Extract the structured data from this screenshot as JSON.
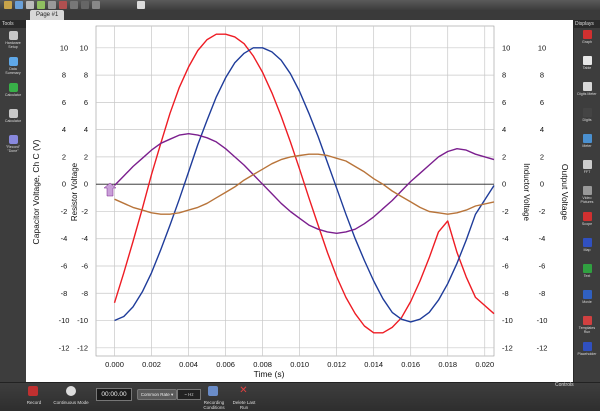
{
  "tabs": {
    "page_label": "Page #1"
  },
  "left_panel": {
    "header": "Tools",
    "items": [
      {
        "label": "Hardware Setup",
        "icon": "hardware-icon",
        "color": "#c8c8c8"
      },
      {
        "label": "Data Summary",
        "icon": "data-summary-icon",
        "color": "#5fa8e8"
      },
      {
        "label": "Calculator",
        "icon": "calculator-icon",
        "color": "#38b048"
      },
      {
        "label": "Calculator",
        "icon": "calculator-icon",
        "color": "#c8c8c8"
      },
      {
        "label": "\"Record\" \"Done\"",
        "icon": "record-icon",
        "color": "#8888dd"
      }
    ]
  },
  "right_panel": {
    "header": "Displays",
    "items": [
      {
        "label": "Graph",
        "icon": "graph-icon",
        "color": "#d03030"
      },
      {
        "label": "Table",
        "icon": "table-icon",
        "color": "#e8e8e8"
      },
      {
        "label": "Digits Meter",
        "icon": "digits-icon",
        "color": "#d8d8d8"
      },
      {
        "label": "Digits",
        "icon": "meter-icon",
        "color": "#444444"
      },
      {
        "label": "Meter",
        "icon": "gauge-icon",
        "color": "#4a90d0"
      },
      {
        "label": "FFT",
        "icon": "fft-icon",
        "color": "#cccccc"
      },
      {
        "label": "Video Pictures",
        "icon": "video-icon",
        "color": "#999999"
      },
      {
        "label": "Scope",
        "icon": "scope-icon",
        "color": "#d03030"
      },
      {
        "label": "Map",
        "icon": "map-icon",
        "color": "#3050c0"
      },
      {
        "label": "Text",
        "icon": "text-icon",
        "color": "#30a040"
      },
      {
        "label": "Movie",
        "icon": "movie-icon",
        "color": "#3060c0"
      },
      {
        "label": "Templates Run",
        "icon": "templates-icon",
        "color": "#d04040"
      },
      {
        "label": "Placeholder",
        "icon": "placeholder-icon",
        "color": "#3050c0"
      }
    ]
  },
  "bottom_bar": {
    "record_label": "Record",
    "mode_label": "Continuous Mode",
    "timer": "00:00.00",
    "rate_label": "Common Rate ▾",
    "rate_value": "~ Hz",
    "recording_label": "Recording Conditions",
    "delete_label": "Delete Last Run",
    "controls_header": "Controls"
  },
  "colors": {
    "red": "#ee1c24",
    "blue": "#1f3c9a",
    "purple": "#7b1f8e",
    "brown": "#b8743a"
  },
  "chart_data": {
    "type": "line",
    "xlabel": "Time (s)",
    "y_left_label": "Capacitor Voltage, Ch C (V)",
    "y_resistor_label": "Resistor Voltage",
    "y_inductor_label": "Inductor Voltage",
    "y_output_label": "Output Voltage",
    "xlim": [
      -0.001,
      0.0205
    ],
    "ylim": [
      -12.6,
      11.6
    ],
    "x_ticks": [
      "0.000",
      "0.002",
      "0.004",
      "0.006",
      "0.008",
      "0.010",
      "0.012",
      "0.014",
      "0.016",
      "0.018",
      "0.020"
    ],
    "x_tick_values": [
      0,
      0.002,
      0.004,
      0.006,
      0.008,
      0.01,
      0.012,
      0.014,
      0.016,
      0.018,
      0.02
    ],
    "y_ticks": [
      "10",
      "8",
      "6",
      "4",
      "2",
      "0",
      "-2",
      "-4",
      "-6",
      "-8",
      "-10",
      "-12"
    ],
    "y_tick_values": [
      10,
      8,
      6,
      4,
      2,
      0,
      -2,
      -4,
      -6,
      -8,
      -10,
      -12
    ],
    "grid": true,
    "x_sample": [
      0,
      0.0005,
      0.001,
      0.0015,
      0.002,
      0.0025,
      0.003,
      0.0035,
      0.004,
      0.0045,
      0.005,
      0.0055,
      0.006,
      0.0065,
      0.007,
      0.0075,
      0.008,
      0.0085,
      0.009,
      0.0095,
      0.01,
      0.0105,
      0.011,
      0.0115,
      0.012,
      0.0125,
      0.013,
      0.0135,
      0.014,
      0.0145,
      0.015,
      0.0155,
      0.016,
      0.0165,
      0.017,
      0.0175,
      0.018,
      0.0185,
      0.019,
      0.0195,
      0.0205
    ],
    "series": [
      {
        "color": "#ee1c24",
        "values": [
          -8.7,
          -6.5,
          -4.2,
          -1.8,
          0.7,
          3.0,
          5.2,
          7.1,
          8.6,
          9.8,
          10.6,
          11.0,
          11.0,
          10.8,
          10.3,
          9.4,
          8.2,
          6.7,
          5.0,
          3.1,
          1.1,
          -1.0,
          -3.0,
          -5.0,
          -6.8,
          -8.3,
          -9.5,
          -10.4,
          -10.9,
          -10.9,
          -10.5,
          -9.8,
          -8.6,
          -7.1,
          -5.4,
          -3.5,
          -2.7,
          -5.0,
          -6.8,
          -8.3,
          -9.5
        ]
      },
      {
        "color": "#1f3c9a",
        "values": [
          -10.0,
          -9.7,
          -9.0,
          -7.9,
          -6.5,
          -4.8,
          -3.0,
          -1.1,
          0.9,
          2.9,
          4.7,
          6.4,
          7.8,
          8.9,
          9.6,
          10.0,
          10.0,
          9.7,
          9.1,
          8.1,
          6.8,
          5.2,
          3.5,
          1.6,
          -0.3,
          -2.2,
          -4.0,
          -5.6,
          -7.1,
          -8.4,
          -9.4,
          -9.9,
          -10.1,
          -9.9,
          -9.4,
          -8.5,
          -7.3,
          -5.8,
          -4.1,
          -2.2,
          -0.1
        ]
      },
      {
        "color": "#7b1f8e",
        "values": [
          -0.1,
          0.6,
          1.3,
          1.9,
          2.5,
          3.0,
          3.3,
          3.6,
          3.7,
          3.6,
          3.4,
          3.1,
          2.6,
          2.0,
          1.4,
          0.7,
          0.0,
          -0.7,
          -1.4,
          -2.0,
          -2.5,
          -3.0,
          -3.3,
          -3.5,
          -3.6,
          -3.5,
          -3.3,
          -2.9,
          -2.4,
          -1.8,
          -1.2,
          -0.5,
          0.2,
          0.8,
          1.4,
          2.0,
          2.4,
          2.6,
          2.5,
          2.2,
          1.8
        ]
      },
      {
        "color": "#b8743a",
        "values": [
          -1.1,
          -1.4,
          -1.7,
          -1.9,
          -2.1,
          -2.2,
          -2.2,
          -2.1,
          -1.9,
          -1.7,
          -1.4,
          -1.0,
          -0.6,
          -0.2,
          0.3,
          0.7,
          1.1,
          1.5,
          1.8,
          2.0,
          2.1,
          2.2,
          2.2,
          2.1,
          1.9,
          1.7,
          1.3,
          0.9,
          0.4,
          0.0,
          -0.5,
          -0.9,
          -1.3,
          -1.7,
          -2.0,
          -2.1,
          -2.2,
          -2.1,
          -1.9,
          -1.6,
          -1.3
        ]
      }
    ]
  }
}
